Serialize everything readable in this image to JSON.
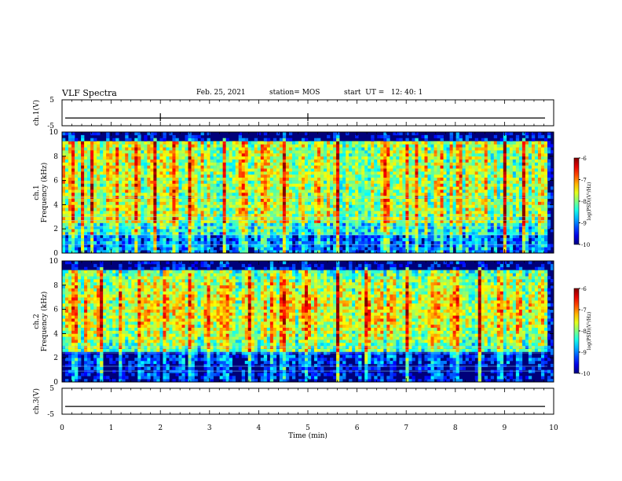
{
  "header": {
    "title": "VLF Spectra",
    "date": "Feb. 25, 2021",
    "station": "station= MOS",
    "start_ut": "start  UT =   12: 40: 1"
  },
  "chart_data": [
    {
      "type": "line",
      "name": "ch.1",
      "ylabel": "ch.1(V)",
      "ylim": [
        -5,
        5
      ],
      "yticks": [
        "5",
        "-5"
      ],
      "xlim": [
        0,
        10
      ],
      "baseline": -2
    },
    {
      "type": "heatmap",
      "ylabel_channel": "ch.1",
      "ylabel": "Frequency (kHz)",
      "ylim": [
        0,
        10
      ],
      "yticks": [
        "0",
        "2",
        "4",
        "6",
        "8",
        "10"
      ],
      "xlim": [
        0,
        10
      ],
      "colorbar": {
        "label": "log(PSD)(V²/Hz)",
        "range": [
          -10,
          -6
        ],
        "ticks": [
          "-6",
          "-7",
          "-8",
          "-9",
          "-10"
        ]
      },
      "bright_events_min": [
        0.25,
        0.4,
        0.6,
        1.1,
        1.5,
        1.9,
        2.3,
        2.6,
        3.3,
        3.7,
        4.1,
        4.5,
        5.2,
        5.6,
        6.6,
        7.0,
        7.2,
        7.7,
        8.1,
        8.6,
        9.0,
        9.4
      ]
    },
    {
      "type": "heatmap",
      "ylabel_channel": "ch.2",
      "ylabel": "Frequency (kHz)",
      "ylim": [
        0,
        10
      ],
      "yticks": [
        "0",
        "2",
        "4",
        "6",
        "8",
        "10"
      ],
      "xlim": [
        0,
        10
      ],
      "colorbar": {
        "label": "log(PSD)(V²/Hz)",
        "range": [
          -10,
          -6
        ],
        "ticks": [
          "-6",
          "-7",
          "-8",
          "-9",
          "-10"
        ]
      },
      "bright_events_min": [
        0.25,
        0.5,
        0.8,
        1.2,
        1.6,
        2.1,
        2.6,
        3.0,
        3.4,
        3.8,
        4.3,
        4.5,
        5.0,
        5.6,
        6.2,
        7.0,
        7.5,
        8.0,
        8.5,
        8.9,
        9.3
      ]
    },
    {
      "type": "line",
      "name": "ch.3",
      "ylabel": "ch.3(V)",
      "ylim": [
        -5,
        5
      ],
      "yticks": [
        "5",
        "-5"
      ],
      "xlim": [
        0,
        10
      ],
      "baseline": -2
    }
  ],
  "x_axis": {
    "label": "Time  (min)",
    "range": [
      0,
      10
    ],
    "ticks": [
      "0",
      "1",
      "2",
      "3",
      "4",
      "5",
      "6",
      "7",
      "8",
      "9",
      "10"
    ]
  }
}
